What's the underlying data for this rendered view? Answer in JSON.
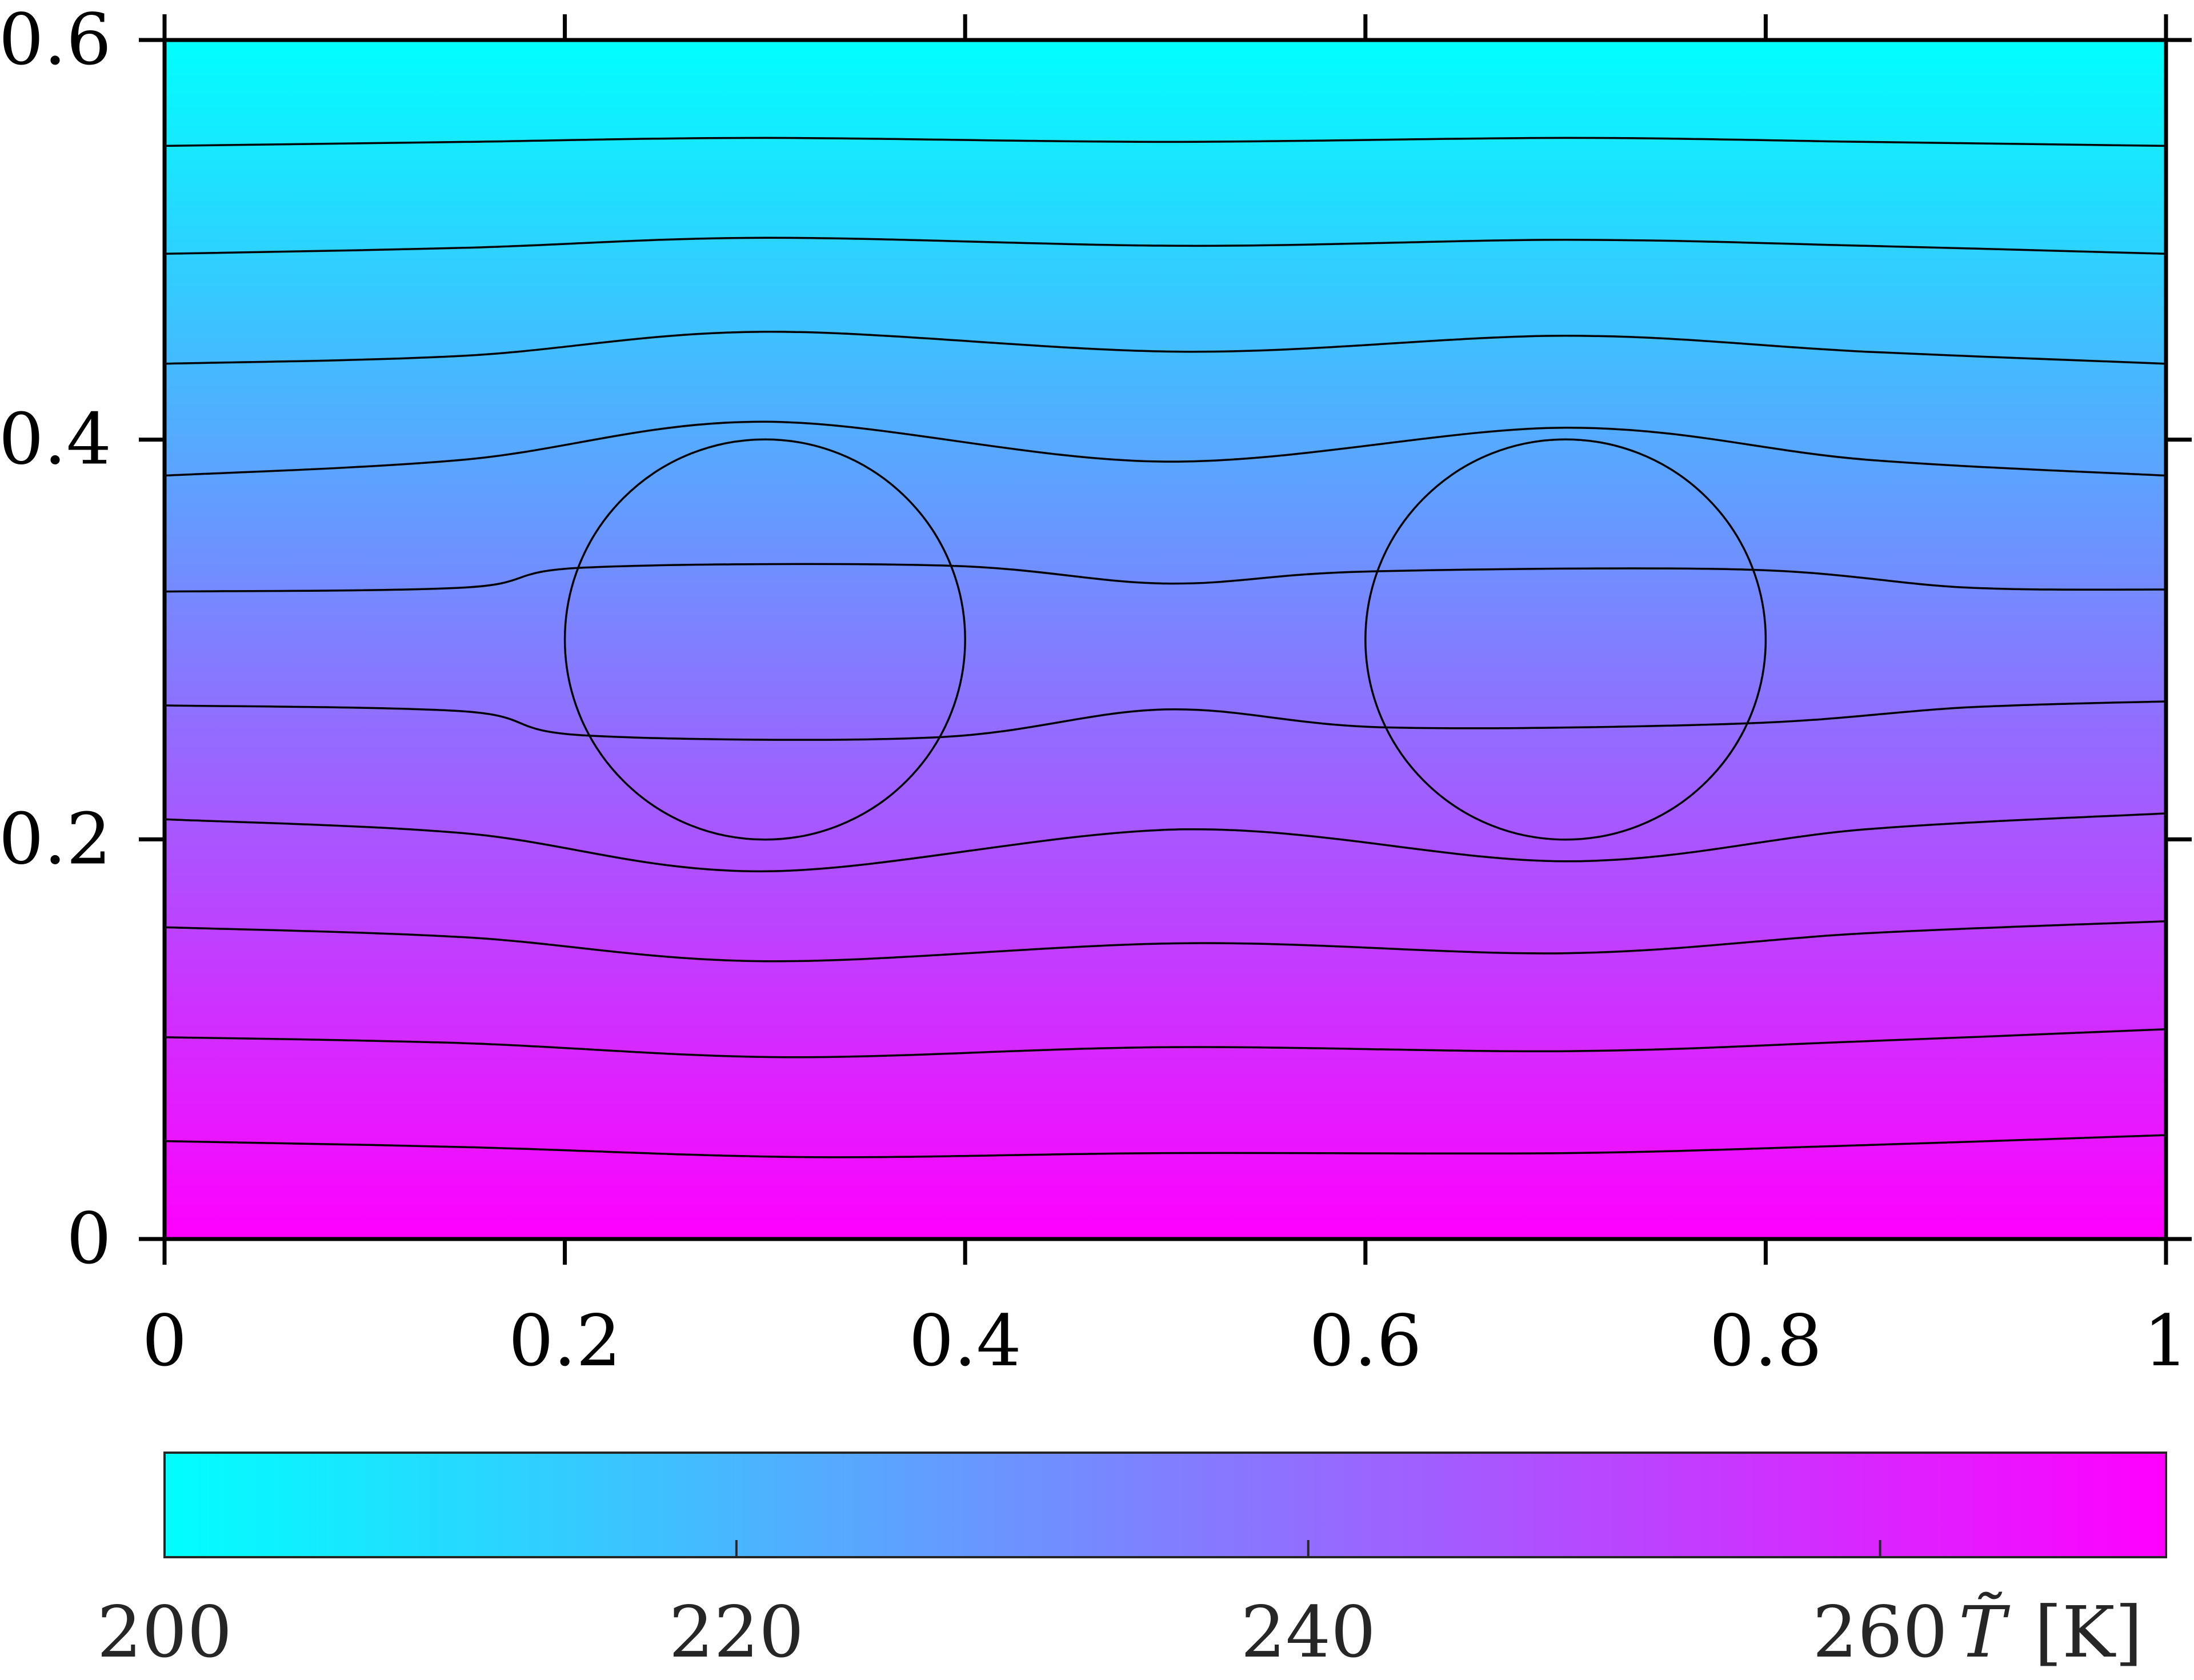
{
  "chart_data": {
    "type": "heatmap",
    "title": "",
    "xlabel": "",
    "ylabel": "",
    "xlim": [
      0,
      1
    ],
    "ylim": [
      0,
      0.6
    ],
    "x_ticks": [
      0,
      0.2,
      0.4,
      0.6,
      0.8,
      1
    ],
    "x_tick_labels": [
      "0",
      "0.2",
      "0.4",
      "0.6",
      "0.8",
      "1"
    ],
    "y_ticks": [
      0,
      0.2,
      0.4,
      0.6
    ],
    "y_tick_labels": [
      "0",
      "0.2",
      "0.4",
      "0.6"
    ],
    "grid": false,
    "field": {
      "description_units": "K",
      "bottom_value": 270,
      "top_value": 200,
      "colormap": [
        "#00ffff",
        "#ff00ff"
      ]
    },
    "circles": [
      {
        "cx": 0.3,
        "cy": 0.3,
        "r": 0.1
      },
      {
        "cx": 0.7,
        "cy": 0.3,
        "r": 0.1
      }
    ],
    "contours": [
      [
        [
          0,
          0.049
        ],
        [
          0.15,
          0.046
        ],
        [
          0.32,
          0.041
        ],
        [
          0.5,
          0.043
        ],
        [
          0.7,
          0.043
        ],
        [
          0.85,
          0.047
        ],
        [
          1,
          0.052
        ]
      ],
      [
        [
          0,
          0.101
        ],
        [
          0.15,
          0.098
        ],
        [
          0.31,
          0.091
        ],
        [
          0.5,
          0.096
        ],
        [
          0.7,
          0.094
        ],
        [
          0.85,
          0.099
        ],
        [
          1,
          0.105
        ]
      ],
      [
        [
          0,
          0.156
        ],
        [
          0.15,
          0.151
        ],
        [
          0.3,
          0.139
        ],
        [
          0.51,
          0.148
        ],
        [
          0.7,
          0.143
        ],
        [
          0.85,
          0.153
        ],
        [
          1,
          0.159
        ]
      ],
      [
        [
          0,
          0.21
        ],
        [
          0.15,
          0.203
        ],
        [
          0.3,
          0.184
        ],
        [
          0.51,
          0.205
        ],
        [
          0.7,
          0.189
        ],
        [
          0.85,
          0.205
        ],
        [
          1,
          0.213
        ]
      ],
      [
        [
          0,
          0.267
        ],
        [
          0.15,
          0.264
        ],
        [
          0.21,
          0.252
        ],
        [
          0.385,
          0.251
        ],
        [
          0.5,
          0.265
        ],
        [
          0.61,
          0.256
        ],
        [
          0.79,
          0.258
        ],
        [
          0.9,
          0.266
        ],
        [
          1,
          0.269
        ]
      ],
      [
        [
          0,
          0.324
        ],
        [
          0.15,
          0.326
        ],
        [
          0.21,
          0.336
        ],
        [
          0.39,
          0.337
        ],
        [
          0.5,
          0.328
        ],
        [
          0.6,
          0.334
        ],
        [
          0.79,
          0.335
        ],
        [
          0.9,
          0.326
        ],
        [
          1,
          0.325
        ]
      ],
      [
        [
          0,
          0.382
        ],
        [
          0.15,
          0.39
        ],
        [
          0.3,
          0.409
        ],
        [
          0.5,
          0.389
        ],
        [
          0.7,
          0.406
        ],
        [
          0.85,
          0.39
        ],
        [
          1,
          0.382
        ]
      ],
      [
        [
          0,
          0.438
        ],
        [
          0.15,
          0.442
        ],
        [
          0.3,
          0.454
        ],
        [
          0.51,
          0.444
        ],
        [
          0.7,
          0.452
        ],
        [
          0.85,
          0.444
        ],
        [
          1,
          0.438
        ]
      ],
      [
        [
          0,
          0.493
        ],
        [
          0.15,
          0.496
        ],
        [
          0.3,
          0.501
        ],
        [
          0.51,
          0.497
        ],
        [
          0.7,
          0.5
        ],
        [
          0.85,
          0.497
        ],
        [
          1,
          0.493
        ]
      ],
      [
        [
          0,
          0.547
        ],
        [
          0.15,
          0.549
        ],
        [
          0.3,
          0.551
        ],
        [
          0.5,
          0.549
        ],
        [
          0.7,
          0.551
        ],
        [
          0.85,
          0.549
        ],
        [
          1,
          0.547
        ]
      ]
    ],
    "colorbar": {
      "range": [
        200,
        270
      ],
      "ticks": [
        200,
        220,
        240,
        260
      ],
      "tick_labels": [
        "200",
        "220",
        "240",
        "260"
      ],
      "label_symbol": "T̃",
      "label_units": "[K]",
      "colors": [
        "#00ffff",
        "#ff00ff"
      ]
    }
  }
}
